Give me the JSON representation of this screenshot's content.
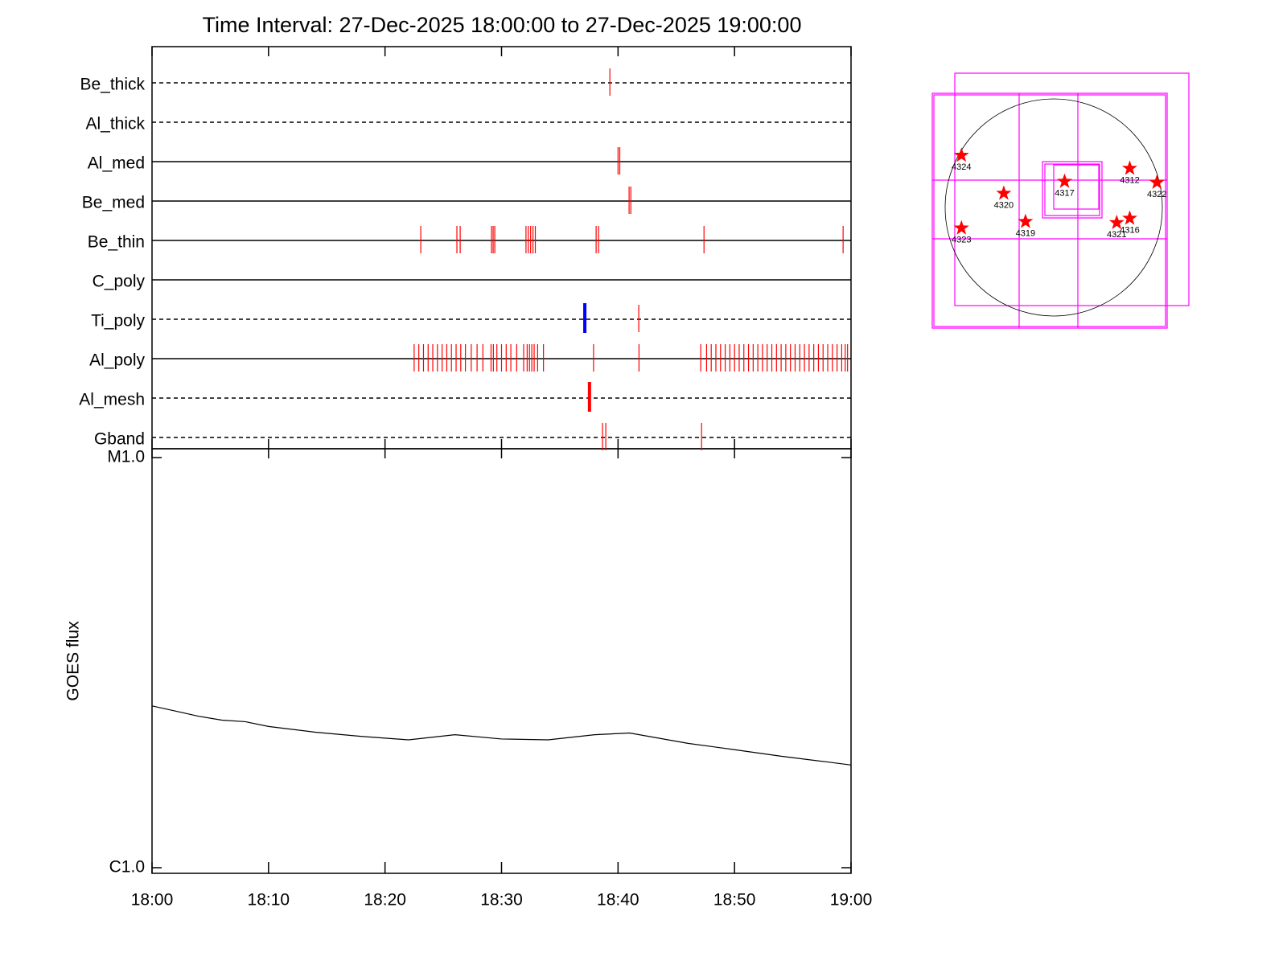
{
  "chart_data": [
    {
      "type": "events",
      "title": "Time Interval: 27-Dec-2025 18:00:00 to 27-Dec-2025 19:00:00",
      "xlim": [
        0,
        60
      ],
      "xticks": [
        {
          "value": 0,
          "label": "18:00"
        },
        {
          "value": 10,
          "label": "18:10"
        },
        {
          "value": 20,
          "label": "18:20"
        },
        {
          "value": 30,
          "label": "18:30"
        },
        {
          "value": 40,
          "label": "18:40"
        },
        {
          "value": 50,
          "label": "18:50"
        },
        {
          "value": 60,
          "label": "19:00"
        }
      ],
      "channels": [
        {
          "name": "Be_thick",
          "line": "dashed",
          "events": [
            {
              "color": "#ff0000",
              "thick": false,
              "times": [
                39.3
              ]
            }
          ]
        },
        {
          "name": "Al_thick",
          "line": "dashed",
          "events": []
        },
        {
          "name": "Al_med",
          "line": "solid",
          "events": [
            {
              "color": "#ff0000",
              "thick": false,
              "times": [
                40.0,
                40.15
              ]
            }
          ]
        },
        {
          "name": "Be_med",
          "line": "solid",
          "events": [
            {
              "color": "#ff0000",
              "thick": false,
              "times": [
                40.95,
                41.1
              ]
            }
          ]
        },
        {
          "name": "Be_thin",
          "line": "solid",
          "events": [
            {
              "color": "#ff0000",
              "thick": false,
              "times": [
                23.07,
                26.17,
                26.45,
                29.14,
                29.28,
                29.42,
                32.1,
                32.3,
                32.5,
                32.7,
                32.9,
                38.12,
                38.33,
                47.38,
                59.32
              ]
            }
          ]
        },
        {
          "name": "C_poly",
          "line": "solid",
          "events": []
        },
        {
          "name": "Ti_poly",
          "line": "dashed",
          "events": [
            {
              "color": "#0000ff",
              "thick": true,
              "times": [
                37.15
              ]
            },
            {
              "color": "#ff0000",
              "thick": false,
              "times": [
                41.78
              ]
            }
          ]
        },
        {
          "name": "Al_poly",
          "line": "solid",
          "events": [
            {
              "color": "#ff0000",
              "thick": false,
              "times": [
                22.5,
                22.9,
                23.3,
                23.7,
                24.1,
                24.5,
                24.9,
                25.3,
                25.7,
                26.1,
                26.5,
                26.9,
                27.4,
                27.9,
                28.4,
                29.1,
                29.3,
                29.6,
                30.0,
                30.4,
                30.8,
                31.3,
                31.9,
                32.2,
                32.4,
                32.6,
                32.8,
                33.1,
                33.6,
                37.9,
                41.8,
                47.1,
                47.6,
                48.0,
                48.4,
                48.8,
                49.2,
                49.6,
                50.0,
                50.4,
                50.8,
                51.2,
                51.6,
                52.0,
                52.4,
                52.8,
                53.2,
                53.6,
                54.0,
                54.4,
                54.8,
                55.2,
                55.6,
                56.0,
                56.4,
                56.8,
                57.2,
                57.6,
                58.0,
                58.4,
                58.8,
                59.2,
                59.5,
                59.7
              ]
            }
          ]
        },
        {
          "name": "Al_mesh",
          "line": "dashed",
          "events": [
            {
              "color": "#ff0000",
              "thick": true,
              "times": [
                37.55
              ]
            }
          ]
        },
        {
          "name": "Gband",
          "line": "dashed",
          "events": [
            {
              "color": "#ff0000",
              "thick": false,
              "times": [
                38.67,
                38.95,
                47.17
              ]
            }
          ]
        }
      ]
    },
    {
      "type": "line",
      "ylabel": "GOES flux",
      "log_scale": true,
      "xlim": [
        0,
        60
      ],
      "ylim": [
        1e-06,
        1e-05
      ],
      "yticks": [
        {
          "value": 1e-06,
          "label": "C1.0"
        },
        {
          "value": 1e-05,
          "label": "M1.0"
        }
      ],
      "series": [
        {
          "color": "#000000",
          "x": [
            0,
            2,
            4,
            6,
            8,
            10,
            14,
            18,
            22,
            26,
            30,
            34,
            38,
            41,
            46,
            50,
            54,
            58,
            60
          ],
          "values": [
            2.48e-06,
            2.41e-06,
            2.34e-06,
            2.29e-06,
            2.27e-06,
            2.21e-06,
            2.14e-06,
            2.09e-06,
            2.05e-06,
            2.11e-06,
            2.06e-06,
            2.05e-06,
            2.11e-06,
            2.13e-06,
            2.01e-06,
            1.94e-06,
            1.87e-06,
            1.81e-06,
            1.78e-06
          ]
        }
      ]
    },
    {
      "type": "sunmap",
      "xlim": [
        -1,
        1
      ],
      "ylim": [
        -1,
        1
      ],
      "regions": [
        {
          "label": "4324",
          "x": -0.85,
          "y": 0.48
        },
        {
          "label": "4320",
          "x": -0.46,
          "y": 0.13
        },
        {
          "label": "4317",
          "x": 0.1,
          "y": 0.24
        },
        {
          "label": "4312",
          "x": 0.7,
          "y": 0.36
        },
        {
          "label": "4322",
          "x": 0.95,
          "y": 0.23
        },
        {
          "label": "4323",
          "x": -0.85,
          "y": -0.19
        },
        {
          "label": "4319",
          "x": -0.26,
          "y": -0.13
        },
        {
          "label": "4321",
          "x": 0.58,
          "y": -0.14
        },
        {
          "label": "4316",
          "x": 0.7,
          "y": -0.1
        }
      ]
    }
  ]
}
